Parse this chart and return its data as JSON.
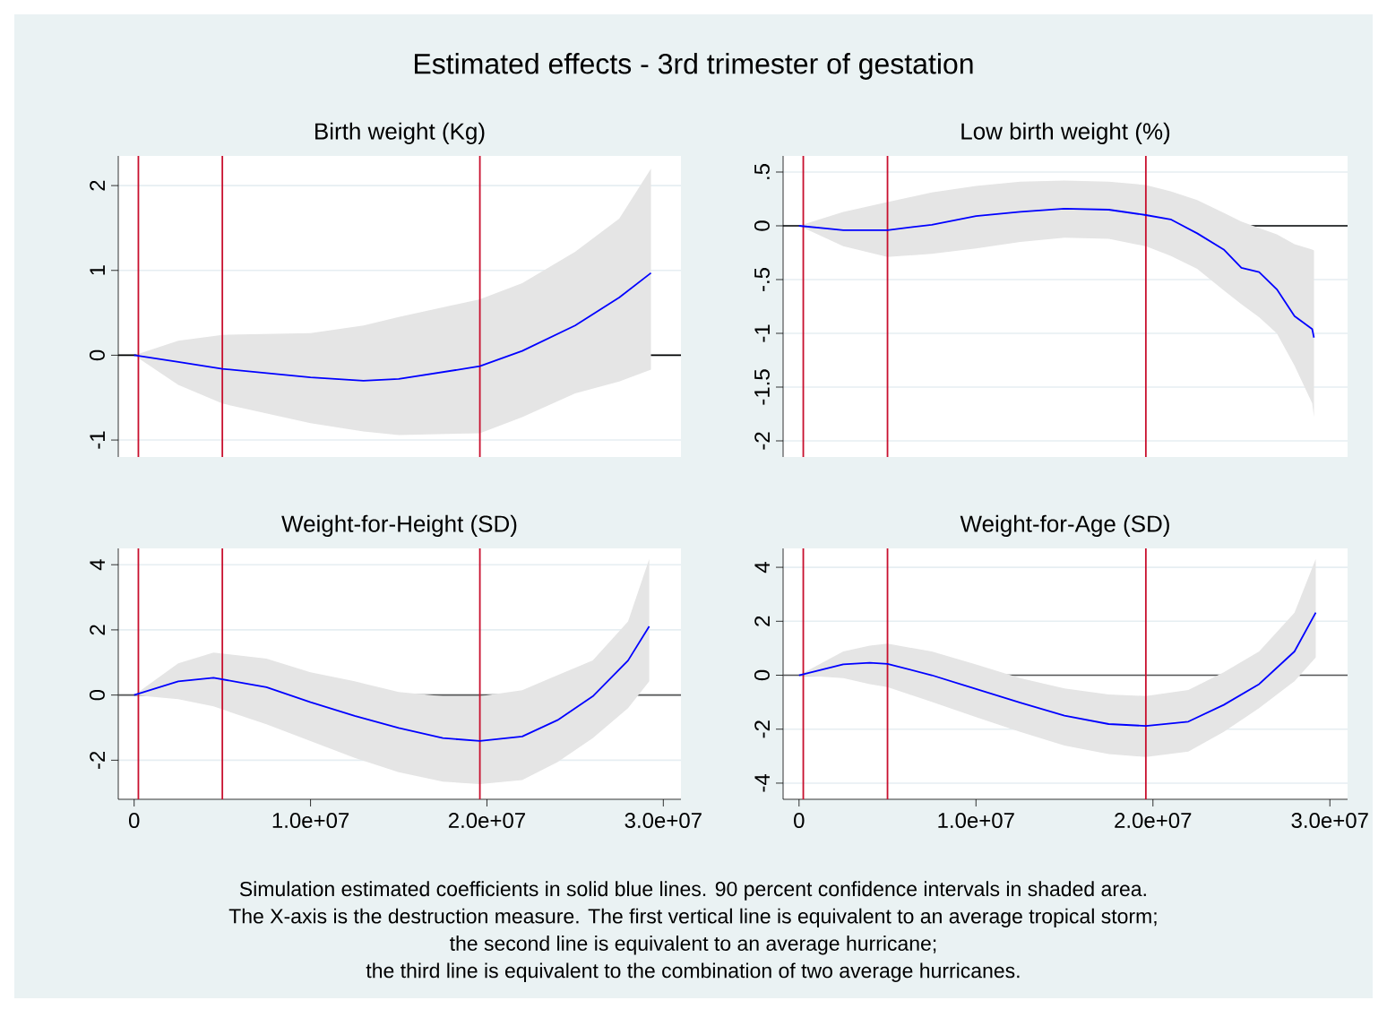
{
  "chart_data": [
    {
      "type": "other",
      "title": "Estimated effects - 3rd trimester of gestation",
      "annotations": [
        "Simulation estimated coefficients in solid blue lines. 90 percent confidence intervals in shaded area.",
        "The X-axis is the destruction measure. The first vertical line is equivalent to an average tropical storm;",
        "the second line is equivalent to an average hurricane;",
        "the third line is equivalent to the combination of two average hurricanes."
      ]
    },
    {
      "type": "line",
      "title": "Birth weight (Kg)",
      "x": [
        0,
        2500000,
        5000000,
        10000000,
        13000000,
        15000000,
        19600000,
        22000000,
        25000000,
        27500000,
        29300000
      ],
      "series": [
        {
          "color": "#0000ff",
          "values": [
            0,
            -0.08,
            -0.16,
            -0.26,
            -0.3,
            -0.28,
            -0.13,
            0.05,
            0.35,
            0.68,
            0.97
          ],
          "upper": [
            0,
            0.17,
            0.24,
            0.26,
            0.35,
            0.45,
            0.66,
            0.85,
            1.22,
            1.61,
            2.2
          ],
          "lower": [
            0,
            -0.35,
            -0.57,
            -0.8,
            -0.9,
            -0.94,
            -0.92,
            -0.73,
            -0.45,
            -0.31,
            -0.17
          ]
        }
      ],
      "xlim": [
        -900000,
        31000000
      ],
      "ylim": [
        -1.2,
        2.35
      ],
      "yticks": [
        -1,
        0,
        1,
        2
      ],
      "tick_labels": "y",
      "grid": "y",
      "ref_lines": [
        {
          "axis": "y",
          "value": 0,
          "color": "#000000"
        },
        {
          "axis": "x",
          "value": 240000,
          "color": "#c8102e"
        },
        {
          "axis": "x",
          "value": 5000000,
          "color": "#c8102e"
        },
        {
          "axis": "x",
          "value": 19600000,
          "color": "#c8102e"
        }
      ]
    },
    {
      "type": "line",
      "title": "Low birth weight (%)",
      "x": [
        0,
        2500000,
        5000000,
        7500000,
        10000000,
        12500000,
        15000000,
        17500000,
        19600000,
        21000000,
        22500000,
        24000000,
        25000000,
        26000000,
        27000000,
        28000000,
        29000000,
        29100000
      ],
      "series": [
        {
          "color": "#0000ff",
          "values": [
            0,
            -0.04,
            -0.04,
            0.01,
            0.09,
            0.13,
            0.16,
            0.15,
            0.1,
            0.06,
            -0.07,
            -0.22,
            -0.39,
            -0.43,
            -0.59,
            -0.84,
            -0.96,
            -1.04
          ],
          "upper": [
            0,
            0.13,
            0.22,
            0.31,
            0.37,
            0.41,
            0.42,
            0.41,
            0.38,
            0.32,
            0.24,
            0.12,
            0.04,
            -0.02,
            -0.08,
            -0.17,
            -0.22,
            -0.23
          ],
          "lower": [
            0,
            -0.19,
            -0.29,
            -0.26,
            -0.21,
            -0.15,
            -0.11,
            -0.12,
            -0.19,
            -0.28,
            -0.4,
            -0.6,
            -0.73,
            -0.85,
            -1.0,
            -1.3,
            -1.65,
            -1.78
          ]
        }
      ],
      "xlim": [
        -900000,
        31000000
      ],
      "ylim": [
        -2.15,
        0.65
      ],
      "yticks": [
        {
          "value": -2,
          "label": "-2"
        },
        {
          "value": -1.5,
          "label": "-1.5"
        },
        {
          "value": -1,
          "label": "-1"
        },
        {
          "value": -0.5,
          "label": "-.5"
        },
        {
          "value": 0,
          "label": "0"
        },
        {
          "value": 0.5,
          "label": ".5"
        }
      ],
      "tick_labels": "y",
      "grid": "y",
      "ref_lines": [
        {
          "axis": "y",
          "value": 0,
          "color": "#000000"
        },
        {
          "axis": "x",
          "value": 240000,
          "color": "#c8102e"
        },
        {
          "axis": "x",
          "value": 5000000,
          "color": "#c8102e"
        },
        {
          "axis": "x",
          "value": 19600000,
          "color": "#c8102e"
        }
      ]
    },
    {
      "type": "line",
      "title": "Weight-for-Height (SD)",
      "x": [
        0,
        2500000,
        4500000,
        7500000,
        10000000,
        12500000,
        15000000,
        17500000,
        19600000,
        22000000,
        24000000,
        26000000,
        28000000,
        29200000
      ],
      "series": [
        {
          "color": "#0000ff",
          "values": [
            0,
            0.42,
            0.53,
            0.24,
            -0.22,
            -0.64,
            -1.01,
            -1.32,
            -1.41,
            -1.27,
            -0.77,
            -0.04,
            1.06,
            2.11
          ],
          "upper": [
            0,
            0.97,
            1.3,
            1.12,
            0.7,
            0.42,
            0.09,
            -0.04,
            -0.04,
            0.15,
            0.61,
            1.06,
            2.26,
            4.18
          ],
          "lower": [
            0,
            -0.13,
            -0.35,
            -0.9,
            -1.41,
            -1.93,
            -2.37,
            -2.66,
            -2.73,
            -2.61,
            -2.06,
            -1.32,
            -0.4,
            0.42
          ]
        }
      ],
      "xlim": [
        -900000,
        31000000
      ],
      "ylim": [
        -3.2,
        4.5
      ],
      "xticks": [
        0,
        {
          "value": 10000000,
          "label": "1.0e+07"
        },
        {
          "value": 20000000,
          "label": "2.0e+07"
        },
        {
          "value": 30000000,
          "label": "3.0e+07"
        }
      ],
      "yticks": [
        -2,
        0,
        2,
        4
      ],
      "grid": "y",
      "ref_lines": [
        {
          "axis": "y",
          "value": 0,
          "color": "#555555"
        },
        {
          "axis": "x",
          "value": 240000,
          "color": "#c8102e"
        },
        {
          "axis": "x",
          "value": 5000000,
          "color": "#c8102e"
        },
        {
          "axis": "x",
          "value": 19600000,
          "color": "#c8102e"
        }
      ]
    },
    {
      "type": "line",
      "title": "Weight-for-Age (SD)",
      "x": [
        0,
        2500000,
        4000000,
        5000000,
        7500000,
        10000000,
        12500000,
        15000000,
        17500000,
        19600000,
        22000000,
        24000000,
        26000000,
        28000000,
        29200000
      ],
      "series": [
        {
          "color": "#0000ff",
          "values": [
            0,
            0.4,
            0.46,
            0.42,
            0,
            -0.51,
            -1.02,
            -1.5,
            -1.81,
            -1.88,
            -1.72,
            -1.1,
            -0.33,
            0.88,
            2.32
          ],
          "upper": [
            0,
            0.88,
            1.1,
            1.17,
            0.88,
            0.4,
            -0.11,
            -0.49,
            -0.71,
            -0.77,
            -0.55,
            0.11,
            0.88,
            2.32,
            4.31
          ],
          "lower": [
            0,
            -0.11,
            -0.33,
            -0.44,
            -0.99,
            -1.55,
            -2.1,
            -2.61,
            -2.92,
            -3.03,
            -2.83,
            -2.1,
            -1.22,
            -0.22,
            0.66
          ]
        }
      ],
      "xlim": [
        -900000,
        31000000
      ],
      "ylim": [
        -4.6,
        4.7
      ],
      "xticks": [
        0,
        {
          "value": 10000000,
          "label": "1.0e+07"
        },
        {
          "value": 20000000,
          "label": "2.0e+07"
        },
        {
          "value": 30000000,
          "label": "3.0e+07"
        }
      ],
      "yticks": [
        -4,
        -2,
        0,
        2,
        4
      ],
      "grid": "y",
      "ref_lines": [
        {
          "axis": "y",
          "value": 0,
          "color": "#555555"
        },
        {
          "axis": "x",
          "value": 240000,
          "color": "#c8102e"
        },
        {
          "axis": "x",
          "value": 5000000,
          "color": "#c8102e"
        },
        {
          "axis": "x",
          "value": 19600000,
          "color": "#c8102e"
        }
      ]
    }
  ]
}
